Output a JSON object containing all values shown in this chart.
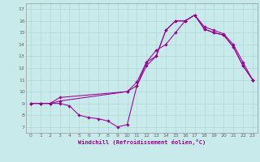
{
  "xlabel": "Windchill (Refroidissement éolien,°C)",
  "bg_color": "#c8eaea",
  "line_color": "#990099",
  "grid_color": "#b0d8d8",
  "xlim": [
    -0.5,
    23.5
  ],
  "ylim": [
    6.5,
    17.5
  ],
  "xticks": [
    0,
    1,
    2,
    3,
    4,
    5,
    6,
    7,
    8,
    9,
    10,
    11,
    12,
    13,
    14,
    15,
    16,
    17,
    18,
    19,
    20,
    21,
    22,
    23
  ],
  "yticks": [
    7,
    8,
    9,
    10,
    11,
    12,
    13,
    14,
    15,
    16,
    17
  ],
  "line1_x": [
    0,
    1,
    2,
    3,
    4,
    5,
    6,
    7,
    8,
    9,
    10,
    11,
    12,
    13,
    14,
    15,
    16,
    17,
    18,
    19,
    20,
    21,
    22,
    23
  ],
  "line1_y": [
    9.0,
    9.0,
    9.0,
    9.0,
    8.8,
    8.0,
    7.8,
    7.7,
    7.5,
    7.0,
    7.2,
    10.5,
    12.2,
    13.0,
    15.2,
    16.0,
    16.0,
    16.5,
    15.3,
    15.0,
    14.8,
    13.8,
    12.2,
    11.0
  ],
  "line2_x": [
    0,
    1,
    2,
    3,
    10,
    11,
    12,
    13,
    14,
    15,
    16,
    17,
    18,
    19,
    20,
    21,
    22,
    23
  ],
  "line2_y": [
    9.0,
    9.0,
    9.0,
    9.2,
    10.0,
    10.5,
    12.5,
    13.0,
    15.2,
    16.0,
    16.0,
    16.5,
    15.3,
    15.0,
    14.8,
    13.8,
    12.2,
    11.0
  ],
  "line3_x": [
    0,
    1,
    2,
    3,
    10,
    11,
    12,
    13,
    14,
    15,
    16,
    17,
    18,
    19,
    20,
    21,
    22,
    23
  ],
  "line3_y": [
    9.0,
    9.0,
    9.0,
    9.5,
    10.0,
    10.8,
    12.5,
    13.5,
    14.0,
    15.0,
    16.0,
    16.5,
    15.5,
    15.2,
    14.9,
    14.0,
    12.5,
    11.0
  ]
}
